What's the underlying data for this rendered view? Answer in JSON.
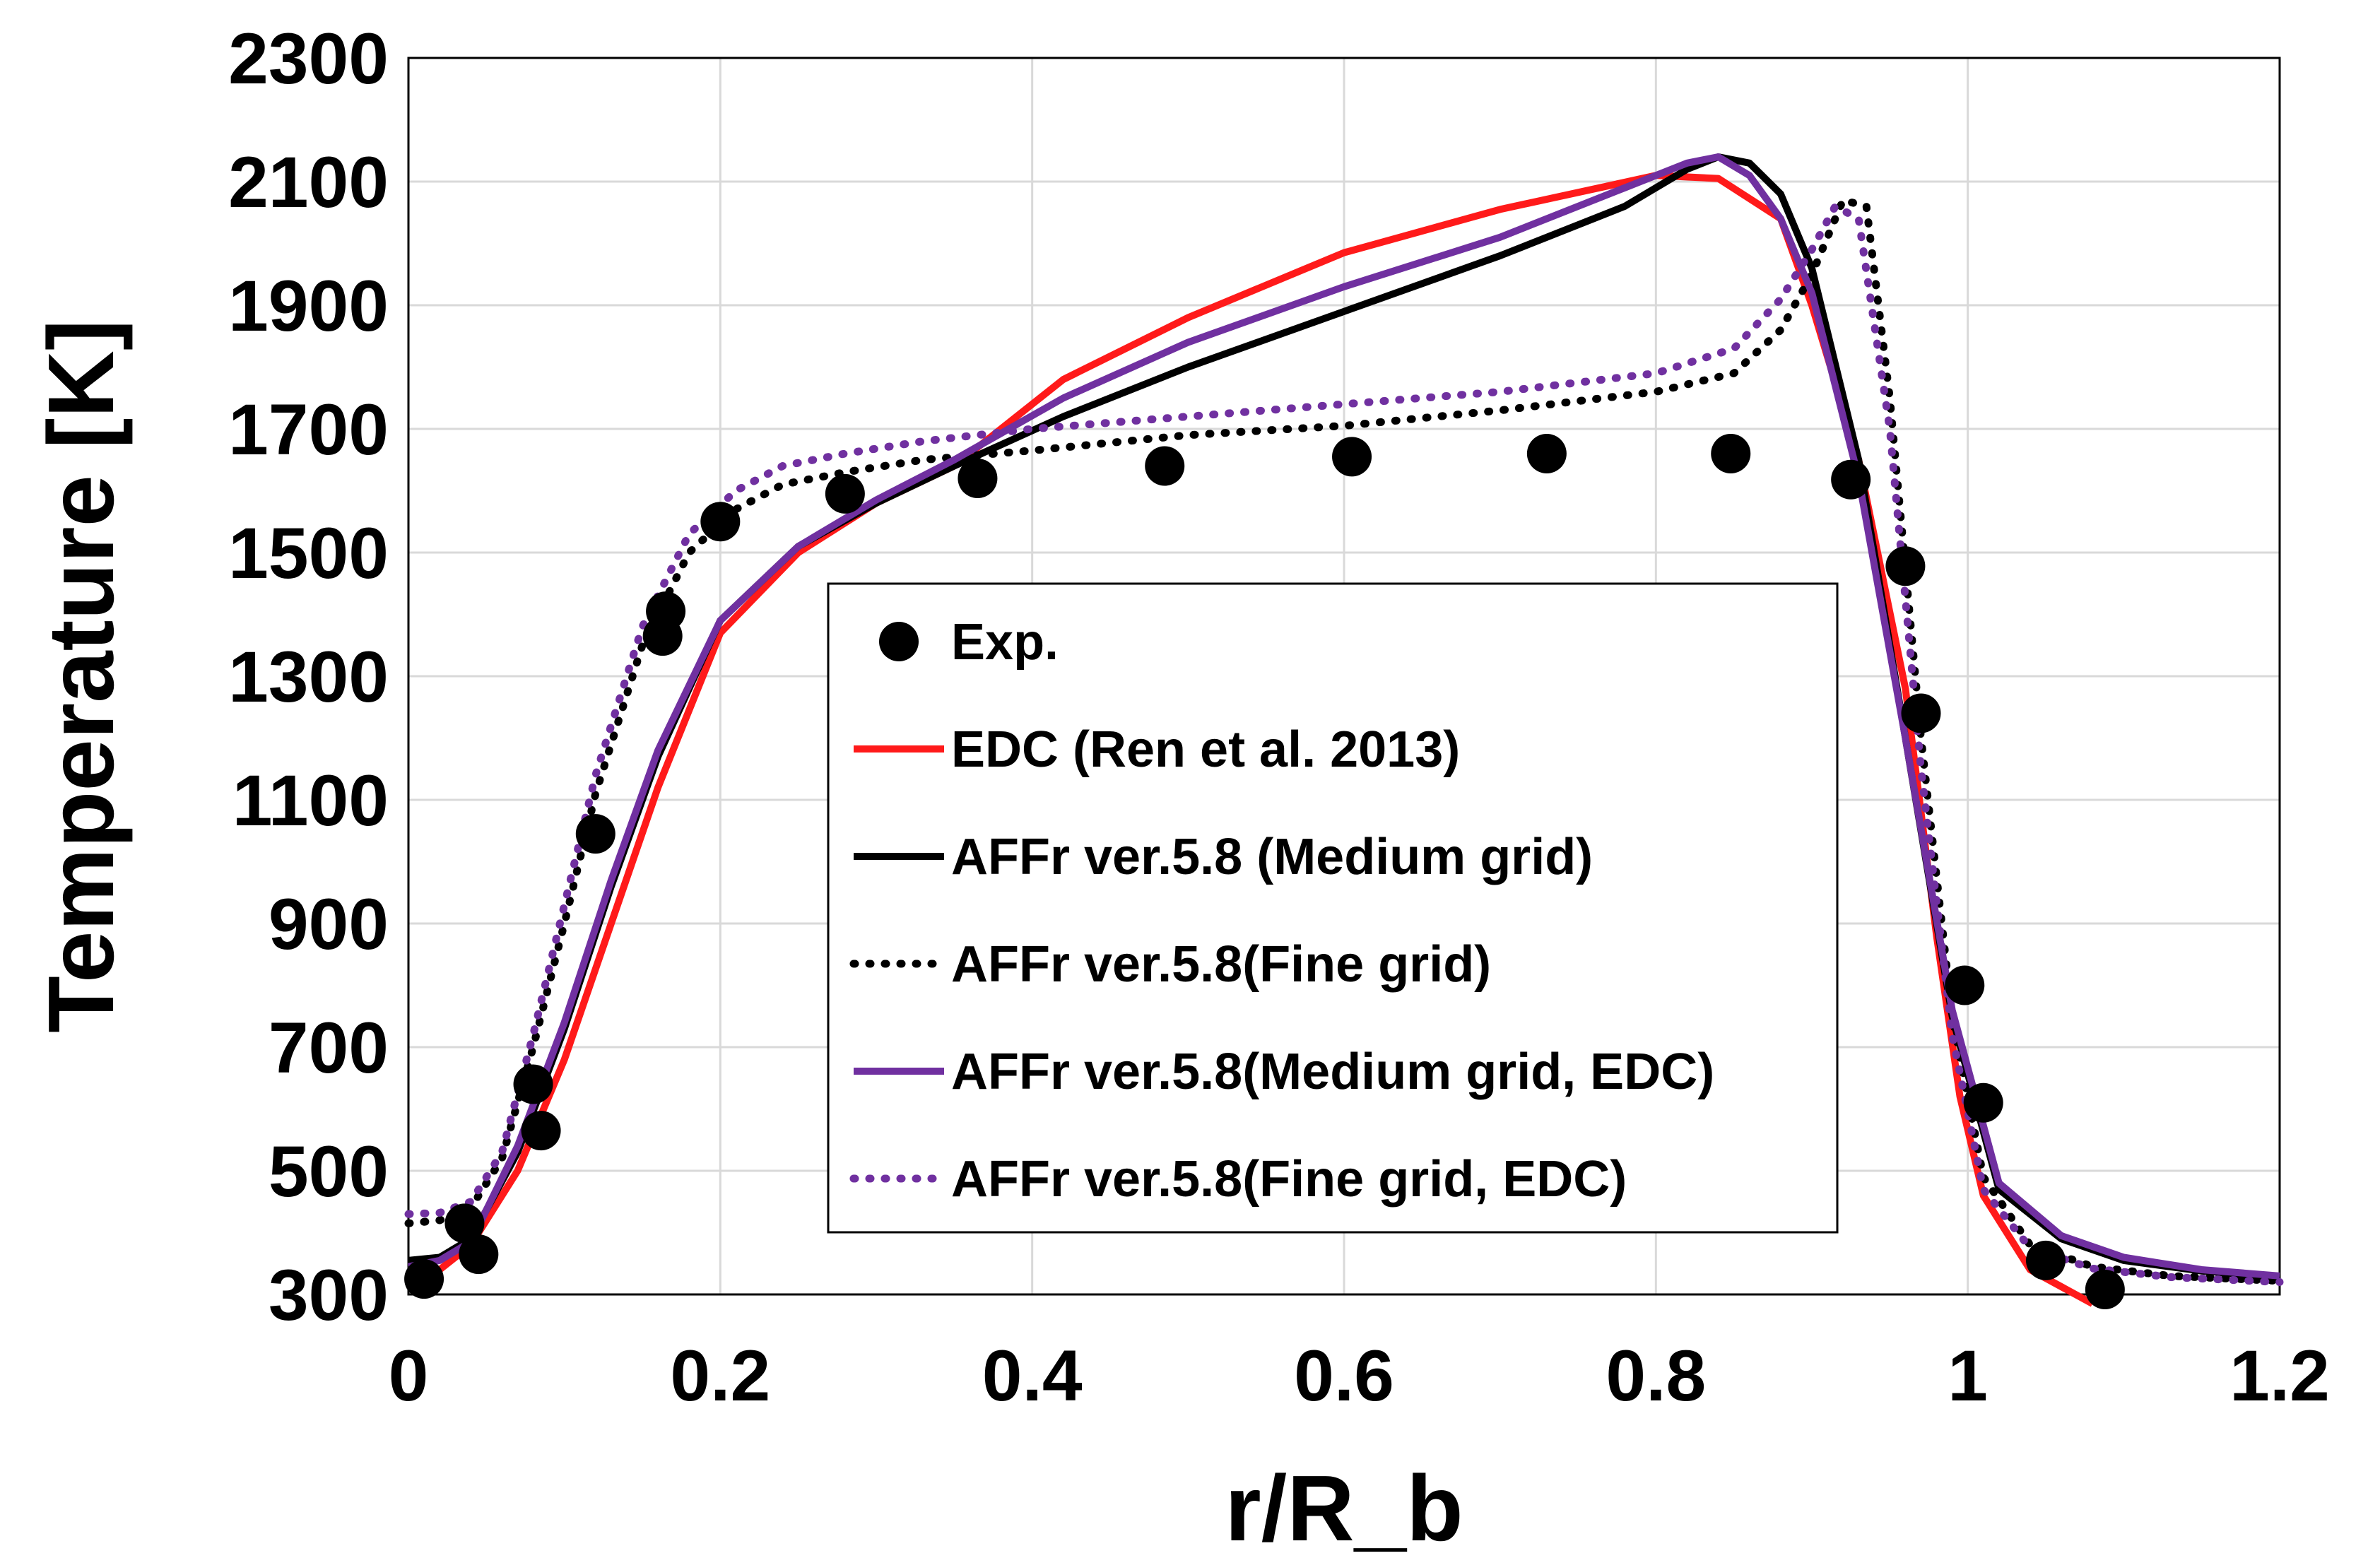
{
  "chart_data": {
    "type": "line",
    "title": "",
    "xlabel": "r/R_b",
    "ylabel": "Temperature [K]",
    "xlim": [
      0,
      1.2
    ],
    "ylim": [
      300,
      2300
    ],
    "xticks": [
      0,
      0.2,
      0.4,
      0.6,
      0.8,
      1,
      1.2
    ],
    "xtick_labels": [
      "0",
      "0.2",
      "0.4",
      "0.6",
      "0.8",
      "1",
      "1.2"
    ],
    "yticks": [
      300,
      500,
      700,
      900,
      1100,
      1300,
      1500,
      1700,
      1900,
      2100,
      2300
    ],
    "ytick_labels": [
      "300",
      "500",
      "700",
      "900",
      "1100",
      "1300",
      "1500",
      "1700",
      "1900",
      "2100",
      "2300"
    ],
    "grid": true,
    "legend_position": "center",
    "series": [
      {
        "name": "Exp.",
        "kind": "scatter",
        "color": "#000000",
        "x": [
          0.01,
          0.036,
          0.045,
          0.08,
          0.085,
          0.12,
          0.163,
          0.165,
          0.2,
          0.28,
          0.365,
          0.485,
          0.605,
          0.73,
          0.848,
          0.925,
          0.96,
          0.97,
          0.998,
          1.01,
          1.05,
          1.088
        ],
        "y": [
          325,
          415,
          365,
          640,
          565,
          1045,
          1365,
          1405,
          1550,
          1595,
          1620,
          1640,
          1655,
          1660,
          1660,
          1618,
          1478,
          1240,
          800,
          610,
          355,
          308
        ]
      },
      {
        "name": "EDC (Ren et al. 2013)",
        "kind": "line",
        "color": "#ff1a1a",
        "dash": "solid",
        "x": [
          0,
          0.02,
          0.04,
          0.07,
          0.1,
          0.13,
          0.16,
          0.2,
          0.25,
          0.3,
          0.35,
          0.42,
          0.5,
          0.6,
          0.7,
          0.8,
          0.84,
          0.88,
          0.9,
          0.93,
          0.96,
          0.98,
          0.995,
          1.01,
          1.04,
          1.08
        ],
        "y": [
          330,
          340,
          380,
          500,
          680,
          900,
          1120,
          1370,
          1500,
          1580,
          1640,
          1780,
          1880,
          1985,
          2055,
          2110,
          2105,
          2040,
          1900,
          1650,
          1280,
          880,
          620,
          460,
          340,
          285
        ]
      },
      {
        "name": "AFFr ver.5.8 (Medium grid)",
        "kind": "line",
        "color": "#000000",
        "dash": "solid",
        "x": [
          0,
          0.02,
          0.04,
          0.07,
          0.1,
          0.13,
          0.16,
          0.2,
          0.25,
          0.3,
          0.35,
          0.42,
          0.5,
          0.6,
          0.7,
          0.78,
          0.82,
          0.84,
          0.86,
          0.88,
          0.9,
          0.93,
          0.96,
          0.99,
          1.02,
          1.06,
          1.1,
          1.15,
          1.2
        ],
        "y": [
          355,
          360,
          390,
          530,
          730,
          960,
          1170,
          1390,
          1510,
          1580,
          1640,
          1720,
          1800,
          1890,
          1980,
          2060,
          2120,
          2140,
          2130,
          2080,
          1960,
          1650,
          1200,
          750,
          470,
          390,
          355,
          338,
          328
        ]
      },
      {
        "name": "AFFr ver.5.8(Fine grid)",
        "kind": "line",
        "color": "#000000",
        "dash": "dotted",
        "x": [
          0,
          0.02,
          0.04,
          0.06,
          0.08,
          0.1,
          0.12,
          0.15,
          0.18,
          0.21,
          0.24,
          0.28,
          0.33,
          0.4,
          0.5,
          0.6,
          0.7,
          0.8,
          0.85,
          0.88,
          0.9,
          0.92,
          0.935,
          0.95,
          0.97,
          0.99,
          1.01,
          1.04,
          1.08,
          1.13,
          1.2
        ],
        "y": [
          415,
          420,
          440,
          520,
          700,
          900,
          1110,
          1350,
          1500,
          1570,
          1610,
          1630,
          1650,
          1665,
          1690,
          1705,
          1730,
          1760,
          1790,
          1860,
          1950,
          2070,
          2060,
          1750,
          1200,
          750,
          490,
          380,
          345,
          330,
          322
        ]
      },
      {
        "name": "AFFr ver.5.8(Medium grid, EDC)",
        "kind": "line",
        "color": "#7030a0",
        "dash": "solid",
        "x": [
          0,
          0.02,
          0.04,
          0.07,
          0.1,
          0.13,
          0.16,
          0.2,
          0.25,
          0.3,
          0.35,
          0.42,
          0.5,
          0.6,
          0.7,
          0.78,
          0.82,
          0.84,
          0.86,
          0.88,
          0.9,
          0.93,
          0.96,
          0.99,
          1.02,
          1.06,
          1.1,
          1.15,
          1.2
        ],
        "y": [
          345,
          355,
          385,
          540,
          740,
          970,
          1180,
          1390,
          1510,
          1585,
          1650,
          1750,
          1840,
          1930,
          2010,
          2090,
          2130,
          2140,
          2110,
          2040,
          1920,
          1620,
          1200,
          760,
          480,
          395,
          360,
          340,
          330
        ]
      },
      {
        "name": "AFFr ver.5.8(Fine grid, EDC)",
        "kind": "line",
        "color": "#7030a0",
        "dash": "dotted",
        "x": [
          0,
          0.02,
          0.04,
          0.06,
          0.08,
          0.1,
          0.12,
          0.15,
          0.18,
          0.21,
          0.24,
          0.28,
          0.33,
          0.4,
          0.5,
          0.6,
          0.7,
          0.8,
          0.85,
          0.88,
          0.9,
          0.915,
          0.93,
          0.95,
          0.97,
          0.99,
          1.01,
          1.04,
          1.08,
          1.13,
          1.2
        ],
        "y": [
          430,
          432,
          450,
          530,
          720,
          930,
          1140,
          1380,
          1530,
          1600,
          1640,
          1660,
          1680,
          1700,
          1720,
          1740,
          1760,
          1790,
          1830,
          1910,
          1990,
          2060,
          2040,
          1700,
          1150,
          720,
          470,
          375,
          342,
          328,
          320
        ]
      }
    ]
  }
}
